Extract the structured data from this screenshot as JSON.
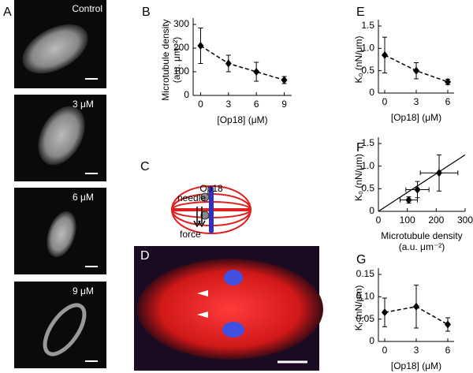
{
  "panels": {
    "A": {
      "label": "A",
      "images": [
        "Control",
        "3 μM",
        "6 μM",
        "9 μM"
      ]
    },
    "C": {
      "label": "C",
      "protein": "Op18",
      "needle": "needle",
      "force": "force"
    },
    "D": {
      "label": "D"
    }
  },
  "chart_data": [
    {
      "type": "line",
      "label": "B",
      "ylabel": [
        "Microtubule density",
        "(a.u. μm⁻²)"
      ],
      "xlabel": [
        "[Op18] (μM)"
      ],
      "x": [
        0,
        3,
        6,
        9
      ],
      "values": [
        210,
        135,
        100,
        65
      ],
      "errors": [
        75,
        35,
        40,
        15
      ],
      "xlim": [
        -0.8,
        9.8
      ],
      "ylim": [
        0,
        300
      ],
      "xticks": [
        0,
        3,
        6,
        9
      ],
      "yticks": [
        0,
        100,
        200,
        300
      ],
      "color": "#000000",
      "linestyle": "dashed"
    },
    {
      "type": "line",
      "label": "E",
      "ylabel": [
        "K₀ (nN/μm)"
      ],
      "xlabel": [
        "[Op18] (μM)"
      ],
      "x": [
        0,
        3,
        6
      ],
      "values": [
        0.85,
        0.5,
        0.25
      ],
      "errors": [
        0.4,
        0.18,
        0.06
      ],
      "xlim": [
        -0.6,
        6.6
      ],
      "ylim": [
        0,
        1.5
      ],
      "xticks": [
        0,
        3,
        6
      ],
      "yticks": [
        0,
        0.5,
        {
          "value": 1,
          "label": "1.0"
        },
        1.5
      ],
      "color": "#000000",
      "linestyle": "dashed"
    },
    {
      "type": "scatter",
      "label": "F",
      "ylabel": [
        "K₀ (nN/μm)"
      ],
      "xlabel": [
        "Microtubule density",
        "(a.u. μm⁻²)"
      ],
      "x": [
        105,
        135,
        210
      ],
      "values": [
        0.25,
        0.48,
        0.85
      ],
      "x_errors": [
        30,
        40,
        65
      ],
      "errors": [
        0.07,
        0.18,
        0.4
      ],
      "fit": {
        "x": [
          0,
          300
        ],
        "y": [
          0,
          1.25
        ]
      },
      "xlim": [
        0,
        300
      ],
      "ylim": [
        0,
        1.5
      ],
      "xticks": [
        0,
        100,
        200,
        300
      ],
      "yticks": [
        0,
        0.5,
        {
          "value": 1,
          "label": "1.0"
        },
        1.5
      ],
      "color": "#000000"
    },
    {
      "type": "line",
      "label": "G",
      "ylabel": [
        "Kᵣ (nN/μm)"
      ],
      "xlabel": [
        "[Op18] (μM)"
      ],
      "x": [
        0,
        3,
        6
      ],
      "values": [
        0.065,
        0.078,
        0.038
      ],
      "errors": [
        0.032,
        0.048,
        0.015
      ],
      "xlim": [
        -0.6,
        6.6
      ],
      "ylim": [
        0,
        0.15
      ],
      "xticks": [
        0,
        3,
        6
      ],
      "yticks": [
        0,
        0.05,
        {
          "value": 0.1,
          "label": "0.10"
        },
        0.15
      ],
      "color": "#000000",
      "linestyle": "dashed"
    }
  ]
}
